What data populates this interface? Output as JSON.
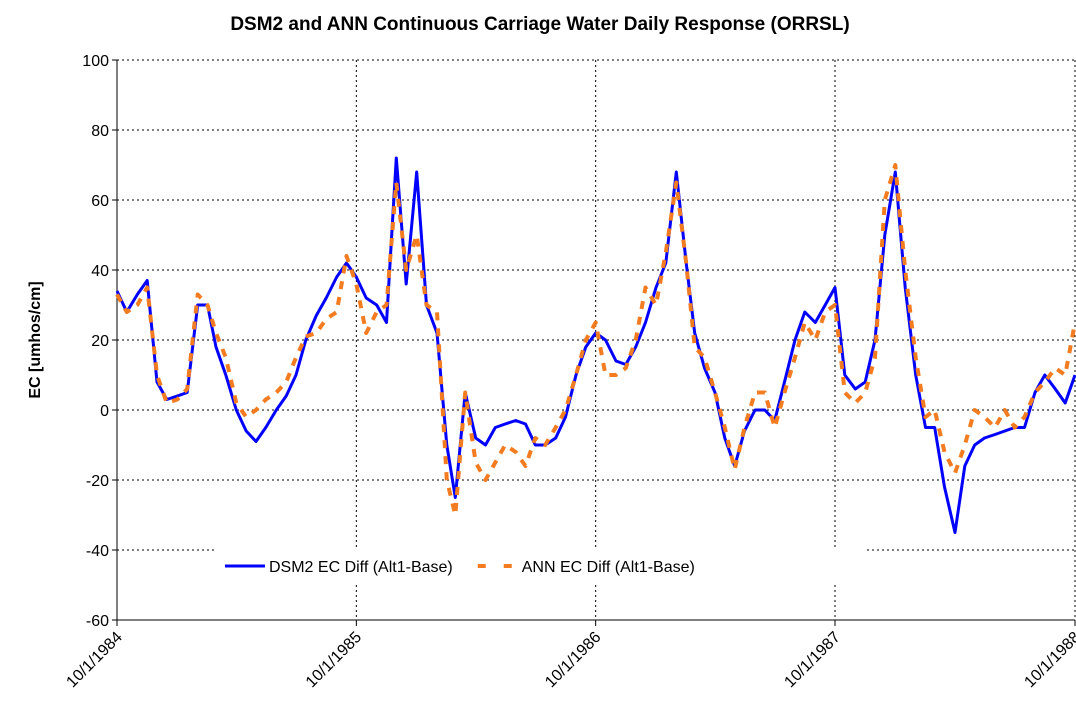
{
  "chart_data": {
    "type": "line",
    "title": "DSM2 and ANN Continuous Carriage Water Daily Response (ORRSL)",
    "y_label": "EC [umhos/cm]",
    "x": [
      "1984-10-01",
      "1984-10-16",
      "1984-11-01",
      "1984-11-16",
      "1984-12-01",
      "1984-12-16",
      "1985-01-01",
      "1985-01-16",
      "1985-02-01",
      "1985-02-16",
      "1985-03-01",
      "1985-03-16",
      "1985-04-01",
      "1985-04-16",
      "1985-05-01",
      "1985-05-16",
      "1985-06-01",
      "1985-06-16",
      "1985-07-01",
      "1985-07-16",
      "1985-08-01",
      "1985-08-16",
      "1985-09-01",
      "1985-09-16",
      "1985-10-01",
      "1985-10-16",
      "1985-11-01",
      "1985-11-16",
      "1985-12-01",
      "1985-12-16",
      "1986-01-01",
      "1986-01-16",
      "1986-02-01",
      "1986-02-16",
      "1986-03-01",
      "1986-03-16",
      "1986-04-01",
      "1986-04-16",
      "1986-05-01",
      "1986-05-16",
      "1986-06-01",
      "1986-06-16",
      "1986-07-01",
      "1986-07-16",
      "1986-08-01",
      "1986-08-16",
      "1986-09-01",
      "1986-09-16",
      "1986-10-01",
      "1986-10-16",
      "1986-11-01",
      "1986-11-16",
      "1986-12-01",
      "1986-12-16",
      "1987-01-01",
      "1987-01-16",
      "1987-02-01",
      "1987-02-16",
      "1987-03-01",
      "1987-03-16",
      "1987-04-01",
      "1987-04-16",
      "1987-05-01",
      "1987-05-16",
      "1987-06-01",
      "1987-06-16",
      "1987-07-01",
      "1987-07-16",
      "1987-08-01",
      "1987-08-16",
      "1987-09-01",
      "1987-09-16",
      "1987-10-01",
      "1987-10-16",
      "1987-11-01",
      "1987-11-16",
      "1987-12-01",
      "1987-12-16",
      "1988-01-01",
      "1988-01-16",
      "1988-02-01",
      "1988-02-16",
      "1988-03-01",
      "1988-03-16",
      "1988-04-01",
      "1988-04-16",
      "1988-05-01",
      "1988-05-16",
      "1988-06-01",
      "1988-06-16",
      "1988-07-01",
      "1988-07-16",
      "1988-08-01",
      "1988-08-16",
      "1988-09-01",
      "1988-09-16",
      "1988-10-01"
    ],
    "series": [
      {
        "name": "DSM2 EC Diff (Alt1-Base)",
        "color": "#0000ff",
        "dashed": false,
        "values": [
          34,
          28,
          33,
          37,
          8,
          3,
          4,
          5,
          30,
          30,
          18,
          10,
          0,
          -6,
          -9,
          -5,
          0,
          4,
          10,
          20,
          27,
          32,
          38,
          42,
          38,
          32,
          30,
          25,
          72,
          36,
          68,
          30,
          22,
          -10,
          -25,
          5,
          -8,
          -10,
          -5,
          -4,
          -3,
          -4,
          -10,
          -10,
          -8,
          -2,
          10,
          18,
          22,
          20,
          14,
          13,
          18,
          25,
          35,
          42,
          68,
          42,
          22,
          12,
          5,
          -8,
          -16,
          -6,
          0,
          0,
          -3,
          8,
          20,
          28,
          25,
          30,
          35,
          10,
          6,
          8,
          20,
          50,
          68,
          35,
          10,
          -5,
          -5,
          -22,
          -35,
          -16,
          -10,
          -8,
          -7,
          -6,
          -5,
          -5,
          5,
          10,
          6,
          2,
          10
        ]
      },
      {
        "name": "ANN EC Diff (Alt1-Base)",
        "color": "#f47c20",
        "dashed": true,
        "values": [
          33,
          28,
          30,
          35,
          10,
          2,
          3,
          6,
          33,
          30,
          22,
          15,
          2,
          -2,
          0,
          3,
          5,
          8,
          15,
          21,
          22,
          26,
          28,
          44,
          36,
          22,
          28,
          30,
          65,
          40,
          50,
          30,
          28,
          -20,
          -30,
          5,
          -15,
          -20,
          -15,
          -10,
          -12,
          -16,
          -8,
          -10,
          -5,
          0,
          10,
          20,
          25,
          10,
          10,
          12,
          20,
          35,
          30,
          45,
          65,
          42,
          18,
          15,
          5,
          -5,
          -17,
          -5,
          5,
          5,
          -5,
          5,
          15,
          25,
          20,
          28,
          30,
          5,
          2,
          5,
          15,
          60,
          70,
          40,
          15,
          -2,
          0,
          -12,
          -18,
          -10,
          0,
          -2,
          -5,
          0,
          -5,
          -2,
          5,
          8,
          12,
          10,
          25
        ]
      }
    ],
    "xlim": [
      "1984-10-01",
      "1988-10-01"
    ],
    "xticks": [
      {
        "value": "1984-10-01",
        "label": "10/1/1984"
      },
      {
        "value": "1985-10-01",
        "label": "10/1/1985"
      },
      {
        "value": "1986-10-01",
        "label": "10/1/1986"
      },
      {
        "value": "1987-10-01",
        "label": "10/1/1987"
      },
      {
        "value": "1988-10-01",
        "label": "10/1/1988"
      }
    ],
    "ylim": [
      -60,
      100
    ],
    "yticks": [
      -60,
      -40,
      -20,
      0,
      20,
      40,
      60,
      80,
      100
    ],
    "grid": true,
    "legend": "bottom"
  }
}
